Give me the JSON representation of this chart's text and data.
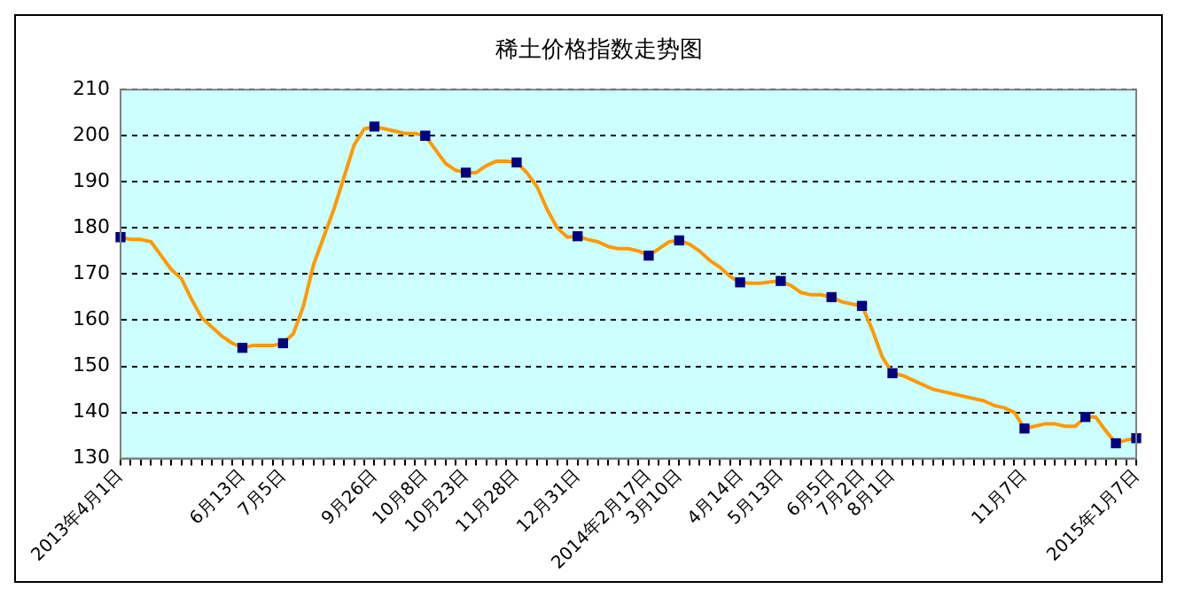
{
  "chart_data": {
    "type": "line",
    "title": "稀土价格指数走势图",
    "categories": [
      "2013年4月1日",
      null,
      null,
      null,
      null,
      null,
      null,
      null,
      null,
      null,
      null,
      null,
      "6月13日",
      null,
      null,
      null,
      "7月5日",
      null,
      null,
      null,
      null,
      null,
      null,
      null,
      null,
      "9月26日",
      null,
      null,
      null,
      null,
      "10月8日",
      null,
      null,
      null,
      "10月23日",
      null,
      null,
      null,
      null,
      "11月28日",
      null,
      null,
      null,
      null,
      null,
      "12月31日",
      null,
      null,
      null,
      null,
      null,
      null,
      "2014年2月17日",
      null,
      null,
      "3月10日",
      null,
      null,
      null,
      null,
      null,
      "4月14日",
      null,
      null,
      null,
      "5月13日",
      null,
      null,
      null,
      null,
      "6月5日",
      null,
      null,
      "7月2日",
      null,
      null,
      "8月1日",
      null,
      null,
      null,
      null,
      null,
      null,
      null,
      null,
      null,
      null,
      null,
      null,
      "11月7日",
      null,
      null,
      null,
      null,
      null,
      null,
      null,
      null,
      null,
      null,
      "2015年1月7日"
    ],
    "series": [
      {
        "type": "line",
        "color": "#ff9900",
        "marker": "none",
        "values": [
          178,
          177.5,
          177.5,
          177,
          174,
          171,
          169,
          164.5,
          160.5,
          158.5,
          156.5,
          155,
          154,
          154.5,
          154.5,
          154.5,
          155,
          157,
          163,
          172,
          178,
          184,
          191,
          198,
          201.5,
          202,
          201.5,
          201,
          200.5,
          200.5,
          200,
          197,
          194,
          192.5,
          192,
          192,
          193.5,
          194.5,
          194.5,
          194.2,
          192,
          189,
          184,
          180,
          178,
          178.2,
          177.5,
          177,
          176,
          175.5,
          175.5,
          175,
          174,
          175.5,
          177,
          177.3,
          176.5,
          175,
          173,
          171.5,
          169.5,
          168.2,
          168,
          168,
          168.3,
          168.5,
          167.5,
          166,
          165.5,
          165.5,
          165,
          164,
          163.5,
          163.1,
          158,
          152,
          148.5,
          148,
          147,
          146,
          145,
          144.5,
          144,
          143.5,
          143,
          142.5,
          141.5,
          141,
          140,
          136.5,
          137,
          137.5,
          137.5,
          137,
          137,
          139,
          139,
          136,
          133.3,
          134,
          134.4
        ]
      },
      {
        "type": "scatter",
        "color": "#000080",
        "marker": "square",
        "values": [
          178,
          null,
          null,
          null,
          null,
          null,
          null,
          null,
          null,
          null,
          null,
          null,
          154,
          null,
          null,
          null,
          155,
          null,
          null,
          null,
          null,
          null,
          null,
          null,
          null,
          202,
          null,
          null,
          null,
          null,
          200,
          null,
          null,
          null,
          192,
          null,
          null,
          null,
          null,
          194.2,
          null,
          null,
          null,
          null,
          null,
          178.2,
          null,
          null,
          null,
          null,
          null,
          null,
          174,
          null,
          null,
          177.3,
          null,
          null,
          null,
          null,
          null,
          168.2,
          null,
          null,
          null,
          168.5,
          null,
          null,
          null,
          null,
          165,
          null,
          null,
          163.1,
          null,
          null,
          148.5,
          null,
          null,
          null,
          null,
          null,
          null,
          null,
          null,
          null,
          null,
          null,
          null,
          136.5,
          null,
          null,
          null,
          null,
          null,
          139,
          null,
          null,
          133.3,
          null,
          134.4
        ]
      }
    ],
    "ylim": [
      130,
      210
    ],
    "yticks": [
      130,
      140,
      150,
      160,
      170,
      180,
      190,
      200,
      210
    ],
    "grid": "y",
    "legend": false
  }
}
